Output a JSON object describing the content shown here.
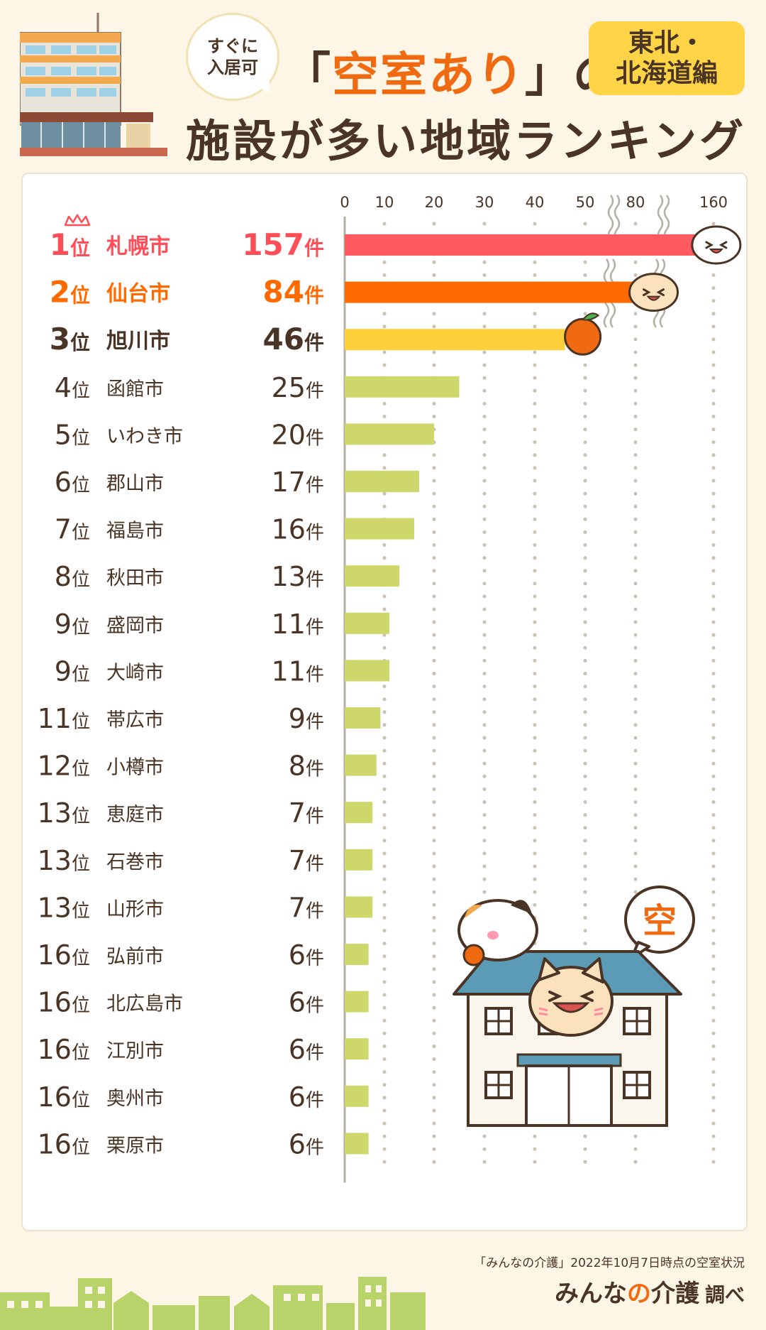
{
  "header": {
    "bubble_line1": "すぐに",
    "bubble_line2": "入居可",
    "title_bracket_open": "「",
    "title_highlight": "空室あり",
    "title_bracket_close": "」の",
    "title_line2": "施設が多い地域ランキング",
    "region_line1": "東北・",
    "region_line2": "北海道編"
  },
  "house_sign": "空",
  "footer": {
    "note": "「みんなの介護」2022年10月7日時点の空室状況",
    "brand_a": "みんな",
    "brand_b": "の",
    "brand_c": "介護",
    "brand_suffix": "調べ"
  },
  "colors": {
    "rank1": "#ff5a5f",
    "rank2": "#ff6a00",
    "rank3": "#ffd03a",
    "others": "#cdd76a",
    "rank1_text": "#ff4e58",
    "rank2_text": "#ff6a00",
    "default_text": "#4a3425"
  },
  "chart_data": {
    "type": "bar",
    "orientation": "horizontal",
    "x_ticks": [
      "0",
      "10",
      "20",
      "30",
      "40",
      "50",
      "80",
      "160"
    ],
    "x_tick_values": [
      0,
      10,
      20,
      30,
      40,
      50,
      80,
      160
    ],
    "axis_break": true,
    "grid": true,
    "rank_suffix": "位",
    "unit": "件",
    "rows": [
      {
        "rank": "1",
        "city": "札幌市",
        "value": 157
      },
      {
        "rank": "2",
        "city": "仙台市",
        "value": 84
      },
      {
        "rank": "3",
        "city": "旭川市",
        "value": 46
      },
      {
        "rank": "4",
        "city": "函館市",
        "value": 25
      },
      {
        "rank": "5",
        "city": "いわき市",
        "value": 20
      },
      {
        "rank": "6",
        "city": "郡山市",
        "value": 17
      },
      {
        "rank": "7",
        "city": "福島市",
        "value": 16
      },
      {
        "rank": "8",
        "city": "秋田市",
        "value": 13
      },
      {
        "rank": "9",
        "city": "盛岡市",
        "value": 11
      },
      {
        "rank": "9",
        "city": "大崎市",
        "value": 11
      },
      {
        "rank": "11",
        "city": "帯広市",
        "value": 9
      },
      {
        "rank": "12",
        "city": "小樽市",
        "value": 8
      },
      {
        "rank": "13",
        "city": "恵庭市",
        "value": 7
      },
      {
        "rank": "13",
        "city": "石巻市",
        "value": 7
      },
      {
        "rank": "13",
        "city": "山形市",
        "value": 7
      },
      {
        "rank": "16",
        "city": "弘前市",
        "value": 6
      },
      {
        "rank": "16",
        "city": "北広島市",
        "value": 6
      },
      {
        "rank": "16",
        "city": "江別市",
        "value": 6
      },
      {
        "rank": "16",
        "city": "奥州市",
        "value": 6
      },
      {
        "rank": "16",
        "city": "栗原市",
        "value": 6
      }
    ]
  }
}
